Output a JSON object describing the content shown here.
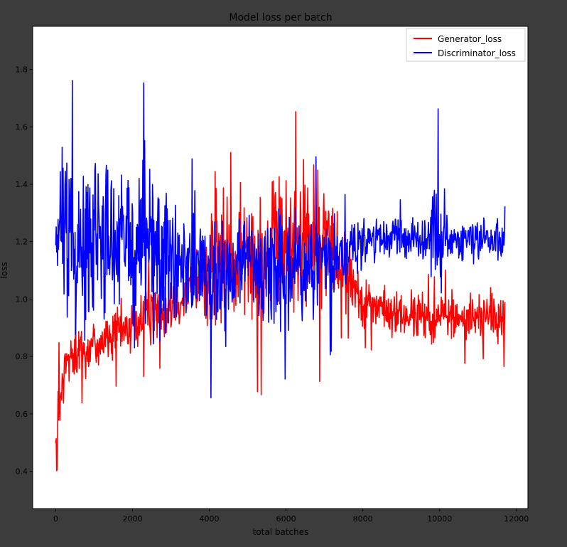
{
  "chart_data": {
    "type": "line",
    "title": "Model loss per batch",
    "xlabel": "total batches",
    "ylabel": "loss",
    "xlim": [
      -600,
      12300
    ],
    "ylim": [
      0.27,
      1.95
    ],
    "xticks": [
      0,
      2000,
      4000,
      6000,
      8000,
      10000,
      12000
    ],
    "yticks": [
      0.4,
      0.6,
      0.8,
      1.0,
      1.2,
      1.4,
      1.6,
      1.8
    ],
    "grid": false,
    "legend_position": "upper right",
    "series": [
      {
        "name": "Generator_loss",
        "color": "#ff0000",
        "x": [
          0,
          30,
          60,
          100,
          150,
          200,
          300,
          400,
          600,
          800,
          1000,
          1300,
          1600,
          1900,
          2200,
          2500,
          2750,
          3000,
          3300,
          3600,
          3900,
          4050,
          4300,
          4700,
          5100,
          5500,
          5900,
          6300,
          6700,
          7000,
          7300,
          7600,
          7900,
          8200,
          8500,
          8800,
          9100,
          9400,
          9700,
          9900,
          10000,
          10300,
          10600,
          10900,
          11200,
          11450,
          11700
        ],
        "y": [
          0.62,
          0.35,
          0.6,
          0.58,
          0.65,
          0.72,
          0.78,
          0.8,
          0.82,
          0.82,
          0.84,
          0.86,
          0.88,
          0.9,
          0.92,
          0.95,
          0.97,
          1.0,
          1.02,
          1.05,
          1.08,
          1.15,
          1.12,
          1.12,
          1.15,
          1.17,
          1.18,
          1.2,
          1.2,
          1.21,
          1.15,
          1.1,
          1.02,
          0.98,
          0.96,
          0.95,
          0.94,
          0.94,
          0.93,
          0.92,
          0.95,
          0.94,
          0.93,
          0.94,
          0.95,
          0.93,
          0.92
        ],
        "amplitude": [
          0.2,
          0.0,
          0.2,
          0.2,
          0.18,
          0.16,
          0.14,
          0.14,
          0.14,
          0.14,
          0.14,
          0.14,
          0.14,
          0.14,
          0.15,
          0.16,
          0.16,
          0.16,
          0.17,
          0.19,
          0.22,
          0.5,
          0.3,
          0.3,
          0.35,
          0.4,
          0.35,
          0.35,
          0.35,
          0.4,
          0.22,
          0.18,
          0.14,
          0.12,
          0.12,
          0.12,
          0.12,
          0.12,
          0.12,
          0.12,
          0.12,
          0.12,
          0.12,
          0.12,
          0.12,
          0.12,
          0.12
        ]
      },
      {
        "name": "Discriminator_loss",
        "color": "#0000ff",
        "x": [
          0,
          100,
          200,
          400,
          600,
          800,
          1000,
          1300,
          1600,
          1900,
          2200,
          2500,
          2750,
          3000,
          3300,
          3600,
          3900,
          4100,
          4400,
          4800,
          5200,
          5500,
          5800,
          6200,
          6600,
          7000,
          7300,
          7600,
          7900,
          8200,
          8500,
          8800,
          9100,
          9400,
          9700,
          9950,
          10200,
          10500,
          10800,
          11100,
          11400,
          11700
        ],
        "y": [
          1.2,
          1.22,
          1.25,
          1.24,
          1.22,
          1.2,
          1.2,
          1.2,
          1.2,
          1.18,
          1.18,
          1.18,
          1.15,
          1.12,
          1.12,
          1.12,
          1.1,
          1.08,
          1.1,
          1.1,
          1.1,
          1.1,
          1.1,
          1.1,
          1.12,
          1.12,
          1.14,
          1.16,
          1.18,
          1.2,
          1.2,
          1.21,
          1.22,
          1.22,
          1.22,
          1.22,
          1.2,
          1.2,
          1.2,
          1.22,
          1.22,
          1.22
        ],
        "amplitude": [
          0.15,
          0.3,
          0.45,
          0.4,
          0.42,
          0.45,
          0.45,
          0.45,
          0.45,
          0.45,
          0.45,
          0.42,
          0.4,
          0.35,
          0.3,
          0.28,
          0.28,
          0.35,
          0.3,
          0.28,
          0.3,
          0.35,
          0.3,
          0.28,
          0.28,
          0.3,
          0.2,
          0.15,
          0.12,
          0.1,
          0.1,
          0.1,
          0.1,
          0.1,
          0.1,
          0.35,
          0.12,
          0.1,
          0.1,
          0.1,
          0.15,
          0.15
        ]
      }
    ]
  }
}
